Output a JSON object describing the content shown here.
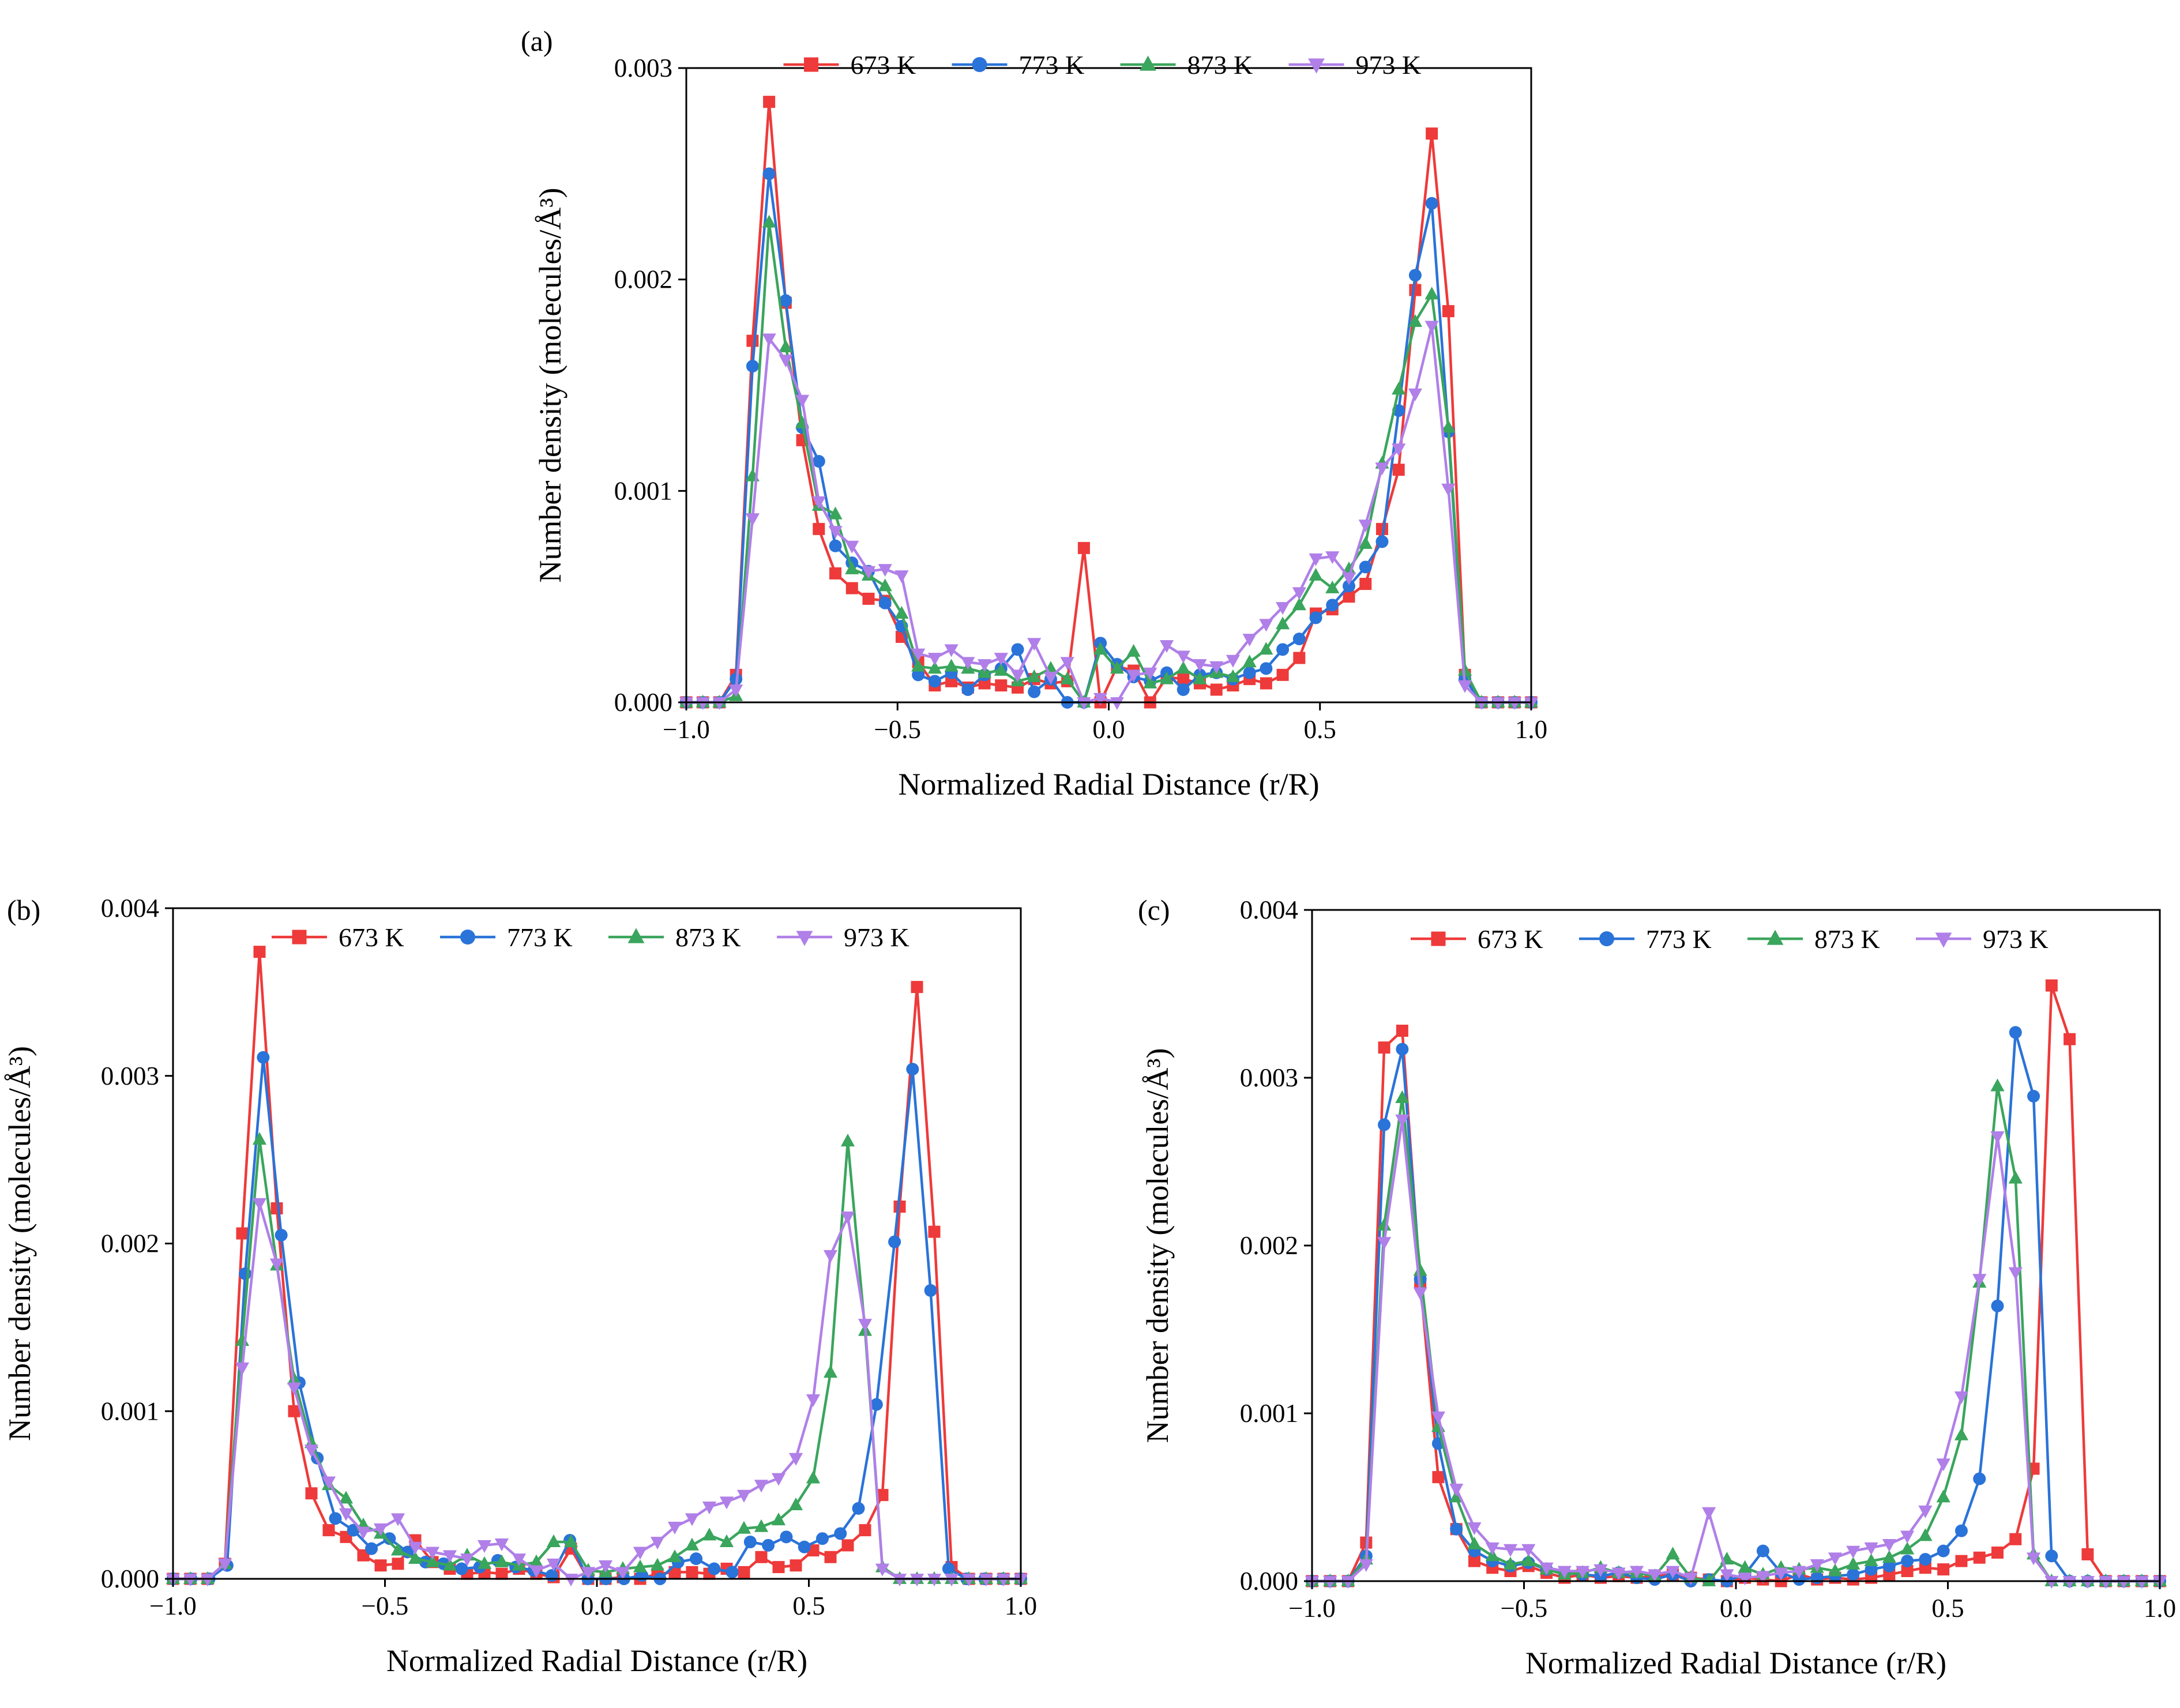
{
  "chart_data": [
    {
      "type": "line",
      "panel_label": "(a)",
      "xlabel": "Normalized Radial Distance (r/R)",
      "ylabel": "Number density (molecules/Å³)",
      "xlim": [
        -1.0,
        1.0
      ],
      "ylim": [
        0,
        0.003
      ],
      "xticks": [
        -1.0,
        -0.5,
        0.0,
        0.5,
        1.0
      ],
      "xtick_labels": [
        "−1.0",
        "−0.5",
        "0.0",
        "0.5",
        "1.0"
      ],
      "yticks": [
        0,
        0.001,
        0.002,
        0.003
      ],
      "ytick_labels": [
        "0.000",
        "0.001",
        "0.002",
        "0.003"
      ],
      "legend": [
        "673 K",
        "773 K",
        "873 K",
        "973 K"
      ],
      "legend_position": "top-center",
      "series": [
        {
          "name": "673 K",
          "color": "#ee3a3a",
          "marker": "square",
          "values": [
            0,
            0,
            0,
            0.00013,
            0.00171,
            0.00284,
            0.00189,
            0.00124,
            0.00082,
            0.00061,
            0.00054,
            0.00049,
            0.00048,
            0.00031,
            0.00019,
            8e-05,
            0.0001,
            7e-05,
            9e-05,
            8e-05,
            7e-05,
            0.00011,
            9e-05,
            0.0001,
            0.00073,
            0.0,
            0.00017,
            0.00015,
            0.0,
            0.00012,
            0.00011,
            9e-05,
            6e-05,
            8e-05,
            0.00011,
            9e-05,
            0.00013,
            0.00021,
            0.00042,
            0.00044,
            0.0005,
            0.00056,
            0.00082,
            0.0011,
            0.00195,
            0.00269,
            0.00185,
            0.00013,
            0,
            0,
            0,
            0
          ]
        },
        {
          "name": "773 K",
          "color": "#2a73d8",
          "marker": "circle",
          "values": [
            0,
            0,
            0,
            0.00011,
            0.00159,
            0.0025,
            0.0019,
            0.0013,
            0.00114,
            0.00074,
            0.00066,
            0.00062,
            0.00047,
            0.00036,
            0.00013,
            0.0001,
            0.00014,
            6e-05,
            0.00013,
            0.00016,
            0.00025,
            5e-05,
            0.00011,
            0.0,
            0.0,
            0.00028,
            0.00018,
            0.00012,
            0.0001,
            0.00014,
            6e-05,
            0.00013,
            0.00014,
            0.00011,
            0.00014,
            0.00016,
            0.00025,
            0.0003,
            0.0004,
            0.00046,
            0.00055,
            0.00064,
            0.00076,
            0.00138,
            0.00202,
            0.00236,
            0.00128,
            0.00011,
            0,
            0,
            0,
            0
          ]
        },
        {
          "name": "873 K",
          "color": "#3aa55c",
          "marker": "triangle-up",
          "values": [
            0,
            0,
            0,
            3e-05,
            0.00107,
            0.00227,
            0.00168,
            0.00132,
            0.00093,
            0.00089,
            0.00063,
            0.0006,
            0.00055,
            0.00042,
            0.00017,
            0.00016,
            0.00017,
            0.00016,
            0.00014,
            0.00015,
            0.0001,
            0.00012,
            0.00016,
            0.00011,
            0.0,
            0.00025,
            0.00016,
            0.00024,
            9e-05,
            0.00011,
            0.00016,
            0.00011,
            0.00014,
            0.00012,
            0.00019,
            0.00025,
            0.00037,
            0.00046,
            0.0006,
            0.00054,
            0.00063,
            0.00075,
            0.00113,
            0.00148,
            0.0018,
            0.00193,
            0.0013,
            0.00015,
            0,
            0,
            0,
            0
          ]
        },
        {
          "name": "973 K",
          "color": "#b07fe8",
          "marker": "triangle-down",
          "values": [
            0,
            0,
            0,
            6e-05,
            0.00087,
            0.00172,
            0.00162,
            0.00143,
            0.00095,
            0.00081,
            0.00074,
            0.00062,
            0.00063,
            0.0006,
            0.00023,
            0.00021,
            0.00025,
            0.00019,
            0.00018,
            0.00021,
            0.00013,
            0.00028,
            0.00012,
            0.00019,
            0.0,
            2e-05,
            0.0,
            0.00013,
            0.00014,
            0.00027,
            0.00022,
            0.00018,
            0.00017,
            0.0002,
            0.0003,
            0.00037,
            0.00045,
            0.00052,
            0.00068,
            0.00069,
            0.00059,
            0.00084,
            0.00111,
            0.0012,
            0.00146,
            0.00178,
            0.00101,
            8e-05,
            0,
            0,
            0,
            0
          ]
        }
      ]
    },
    {
      "type": "line",
      "panel_label": "(b)",
      "xlabel": "Normalized Radial Distance (r/R)",
      "ylabel": "Number density (molecules/Å³)",
      "xlim": [
        -1.0,
        1.0
      ],
      "ylim": [
        0,
        0.004
      ],
      "xticks": [
        -1.0,
        -0.5,
        0.0,
        0.5,
        1.0
      ],
      "xtick_labels": [
        "−1.0",
        "−0.5",
        "0.0",
        "0.5",
        "1.0"
      ],
      "yticks": [
        0,
        0.001,
        0.002,
        0.003,
        0.004
      ],
      "ytick_labels": [
        "0.000",
        "0.001",
        "0.002",
        "0.003",
        "0.004"
      ],
      "legend": [
        "673 K",
        "773 K",
        "873 K",
        "973 K"
      ],
      "legend_position": "top-center",
      "series": [
        {
          "name": "673 K",
          "color": "#ee3a3a",
          "marker": "square",
          "values": [
            0,
            0,
            0,
            9e-05,
            0.00206,
            0.00374,
            0.00221,
            0.001,
            0.00051,
            0.00029,
            0.00025,
            0.00014,
            8e-05,
            9e-05,
            0.00023,
            0.0001,
            6e-05,
            3e-05,
            4e-05,
            3e-05,
            6e-05,
            3e-05,
            1e-05,
            0.00018,
            0.0,
            0.0,
            1e-05,
            0.0,
            3e-05,
            4e-05,
            4e-05,
            3e-05,
            6e-05,
            4e-05,
            0.00013,
            7e-05,
            8e-05,
            0.00017,
            0.00013,
            0.0002,
            0.00029,
            0.0005,
            0.00222,
            0.00353,
            0.00207,
            7e-05,
            0,
            0,
            0,
            0
          ]
        },
        {
          "name": "773 K",
          "color": "#2a73d8",
          "marker": "circle",
          "values": [
            0,
            0,
            0,
            8e-05,
            0.00182,
            0.00311,
            0.00205,
            0.00117,
            0.00072,
            0.00036,
            0.00029,
            0.00018,
            0.00024,
            0.00016,
            0.0001,
            9e-05,
            6e-05,
            7e-05,
            0.00011,
            7e-05,
            5e-05,
            2e-05,
            0.00023,
            0.0,
            0.0,
            0.0,
            2e-05,
            0.0,
            0.0001,
            0.00012,
            6e-05,
            4e-05,
            0.00022,
            0.0002,
            0.00025,
            0.00019,
            0.00024,
            0.00027,
            0.00042,
            0.00104,
            0.00201,
            0.00304,
            0.00172,
            6e-05,
            0,
            0,
            0,
            0
          ]
        },
        {
          "name": "873 K",
          "color": "#3aa55c",
          "marker": "triangle-up",
          "values": [
            0,
            0,
            0,
            9e-05,
            0.00142,
            0.00262,
            0.00187,
            0.00119,
            0.00081,
            0.00056,
            0.00048,
            0.00032,
            0.00027,
            0.00017,
            0.00012,
            0.0001,
            8e-05,
            0.00014,
            9e-05,
            0.0001,
            8e-05,
            0.0001,
            0.00022,
            0.00022,
            5e-05,
            4e-05,
            6e-05,
            7e-05,
            8e-05,
            0.00013,
            0.0002,
            0.00026,
            0.00022,
            0.0003,
            0.00031,
            0.00035,
            0.00044,
            0.0006,
            0.00123,
            0.00261,
            0.00148,
            7e-05,
            0,
            0,
            0,
            0,
            0,
            0,
            0,
            0
          ]
        },
        {
          "name": "973 K",
          "color": "#b07fe8",
          "marker": "triangle-down",
          "values": [
            0,
            0,
            0,
            9e-05,
            0.00126,
            0.00224,
            0.00188,
            0.00114,
            0.00077,
            0.00058,
            0.00039,
            0.00028,
            0.0003,
            0.00036,
            0.00019,
            0.00016,
            0.00014,
            0.00012,
            0.0002,
            0.00021,
            0.00012,
            5e-05,
            9e-05,
            0.0,
            4e-05,
            8e-05,
            4e-05,
            0.00016,
            0.00022,
            0.00031,
            0.00036,
            0.00043,
            0.00046,
            0.0005,
            0.00056,
            0.0006,
            0.00072,
            0.00107,
            0.00193,
            0.00216,
            0.00152,
            6e-05,
            0,
            0,
            0,
            0,
            0,
            0,
            0,
            0
          ]
        }
      ]
    },
    {
      "type": "line",
      "panel_label": "(c)",
      "xlabel": "Normalized Radial Distance (r/R)",
      "ylabel": "Number density (molecules/Å³)",
      "xlim": [
        -1.0,
        1.0
      ],
      "ylim": [
        0,
        0.004
      ],
      "xticks": [
        -1.0,
        -0.5,
        0.0,
        0.5,
        1.0
      ],
      "xtick_labels": [
        "−1.0",
        "−0.5",
        "0.0",
        "0.5",
        "1.0"
      ],
      "yticks": [
        0,
        0.001,
        0.002,
        0.003,
        0.004
      ],
      "ytick_labels": [
        "0.000",
        "0.001",
        "0.002",
        "0.003",
        "0.004"
      ],
      "legend": [
        "673 K",
        "773 K",
        "873 K",
        "973 K"
      ],
      "legend_position": "top-center",
      "series": [
        {
          "name": "673 K",
          "color": "#ee3a3a",
          "marker": "square",
          "values": [
            0,
            0,
            0,
            0.00023,
            0.00318,
            0.00328,
            0.00178,
            0.00062,
            0.00031,
            0.00012,
            8e-05,
            6e-05,
            9e-05,
            5e-05,
            2e-05,
            4e-05,
            2e-05,
            3e-05,
            2e-05,
            3e-05,
            4e-05,
            2e-05,
            1e-05,
            0.0,
            2e-05,
            1e-05,
            0.0,
            4e-05,
            1e-05,
            2e-05,
            1e-05,
            2e-05,
            4e-05,
            6e-05,
            8e-05,
            7e-05,
            0.00012,
            0.00014,
            0.00017,
            0.00025,
            0.00067,
            0.00355,
            0.00323,
            0.00016,
            0,
            0,
            0,
            0
          ]
        },
        {
          "name": "773 K",
          "color": "#2a73d8",
          "marker": "circle",
          "values": [
            0,
            0,
            0,
            0.00015,
            0.00272,
            0.00317,
            0.0018,
            0.00082,
            0.00031,
            0.00018,
            0.00012,
            9e-05,
            0.00011,
            7e-05,
            5e-05,
            4e-05,
            3e-05,
            5e-05,
            2e-05,
            1e-05,
            4e-05,
            0.0,
            1e-05,
            0.0,
            4e-05,
            0.00018,
            5e-05,
            1e-05,
            2e-05,
            3e-05,
            4e-05,
            7e-05,
            9e-05,
            0.00012,
            0.00013,
            0.00018,
            0.0003,
            0.00061,
            0.00164,
            0.00327,
            0.00289,
            0.00015,
            0,
            0,
            0,
            0,
            0,
            0
          ]
        },
        {
          "name": "873 K",
          "color": "#3aa55c",
          "marker": "triangle-up",
          "values": [
            0,
            0,
            0,
            0.00013,
            0.00212,
            0.00288,
            0.00185,
            0.00092,
            0.0005,
            0.00022,
            0.00015,
            0.0001,
            0.00012,
            7e-05,
            4e-05,
            5e-05,
            8e-05,
            5e-05,
            5e-05,
            3e-05,
            0.00016,
            2e-05,
            0.0,
            0.00013,
            8e-05,
            4e-05,
            8e-05,
            7e-05,
            8e-05,
            6e-05,
            0.0001,
            0.00012,
            0.00014,
            0.00019,
            0.00027,
            0.0005,
            0.00087,
            0.00178,
            0.00295,
            0.0024,
            0.00016,
            0,
            0,
            0,
            0,
            0,
            0,
            0
          ]
        },
        {
          "name": "973 K",
          "color": "#b07fe8",
          "marker": "triangle-down",
          "values": [
            0,
            0,
            0,
            0.0001,
            0.00202,
            0.00275,
            0.00172,
            0.00098,
            0.00055,
            0.00032,
            0.0002,
            0.00019,
            0.00019,
            8e-05,
            6e-05,
            6e-05,
            7e-05,
            5e-05,
            6e-05,
            4e-05,
            6e-05,
            2e-05,
            0.00041,
            4e-05,
            2e-05,
            3e-05,
            5e-05,
            6e-05,
            0.0001,
            0.00014,
            0.00018,
            0.0002,
            0.00022,
            0.00027,
            0.00042,
            0.0007,
            0.0011,
            0.0018,
            0.00265,
            0.00184,
            0.00014,
            0,
            0,
            0,
            0,
            0,
            0,
            0
          ]
        }
      ]
    }
  ]
}
